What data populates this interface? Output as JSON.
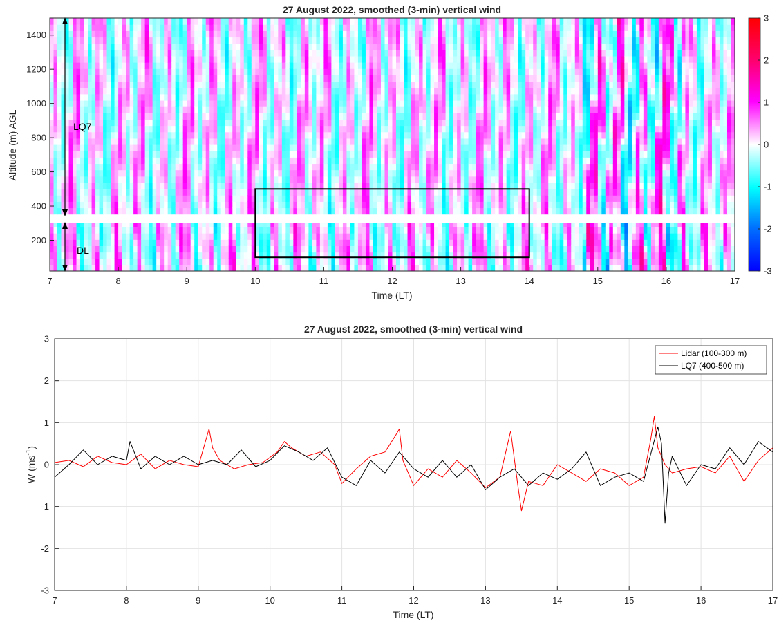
{
  "chart_data": [
    {
      "type": "heatmap",
      "title": "27 August 2022, smoothed (3-min) vertical wind",
      "xlabel": "Time (LT)",
      "ylabel": "Altitude (m) AGL",
      "xlim": [
        7,
        17
      ],
      "ylim": [
        20,
        1500
      ],
      "xticks": [
        "7",
        "8",
        "9",
        "10",
        "11",
        "12",
        "13",
        "14",
        "15",
        "16",
        "17"
      ],
      "yticks": [
        "200",
        "400",
        "600",
        "800",
        "1000",
        "1200",
        "1400"
      ],
      "colorbar": {
        "range": [
          -3,
          3
        ],
        "ticks": [
          "3",
          "2",
          "1",
          "0",
          "-1",
          "-2",
          "-3"
        ],
        "colors": [
          "#0000ff",
          "#00ffff",
          "#ffffff",
          "#ff00ff",
          "#ff0000"
        ]
      },
      "gap_altitude_m": [
        300,
        350
      ],
      "annotations": [
        {
          "text": "LQ7",
          "altitude_range_m": [
            360,
            1500
          ]
        },
        {
          "text": "DL",
          "altitude_range_m": [
            20,
            300
          ]
        }
      ],
      "highlight_box": {
        "time_range": [
          10,
          14
        ],
        "altitude_range_m": [
          100,
          500
        ]
      }
    },
    {
      "type": "line",
      "title": "27 August 2022, smoothed (3-min) vertical wind",
      "xlabel": "Time (LT)",
      "ylabel": "W (ms-1)",
      "ylabel_base": "W (ms",
      "ylabel_sup": "-1",
      "ylabel_end": ")",
      "xlim": [
        7,
        17
      ],
      "ylim": [
        -3,
        3
      ],
      "xticks": [
        "7",
        "8",
        "9",
        "10",
        "11",
        "12",
        "13",
        "14",
        "15",
        "16",
        "17"
      ],
      "yticks": [
        "3",
        "2",
        "1",
        "0",
        "-1",
        "-2",
        "-3"
      ],
      "grid": true,
      "legend_position": "top-right",
      "series": [
        {
          "name": "Lidar (100-300 m)",
          "color": "#ff0000",
          "x": [
            7.0,
            7.2,
            7.4,
            7.6,
            7.8,
            8.0,
            8.2,
            8.4,
            8.6,
            8.8,
            9.0,
            9.15,
            9.2,
            9.3,
            9.5,
            9.7,
            9.9,
            10.1,
            10.2,
            10.3,
            10.5,
            10.7,
            10.9,
            11.0,
            11.2,
            11.4,
            11.6,
            11.75,
            11.8,
            11.85,
            12.0,
            12.2,
            12.4,
            12.6,
            12.8,
            13.0,
            13.2,
            13.35,
            13.45,
            13.5,
            13.6,
            13.8,
            14.0,
            14.2,
            14.4,
            14.6,
            14.8,
            15.0,
            15.2,
            15.3,
            15.35,
            15.4,
            15.5,
            15.6,
            15.8,
            16.0,
            16.2,
            16.4,
            16.6,
            16.8,
            17.0
          ],
          "y": [
            0.05,
            0.1,
            -0.05,
            0.2,
            0.05,
            0.0,
            0.25,
            -0.1,
            0.1,
            0.0,
            -0.05,
            0.85,
            0.4,
            0.1,
            -0.1,
            0.0,
            0.05,
            0.3,
            0.55,
            0.4,
            0.2,
            0.3,
            0.0,
            -0.45,
            -0.1,
            0.2,
            0.3,
            0.7,
            0.85,
            0.1,
            -0.5,
            -0.1,
            -0.3,
            0.1,
            -0.2,
            -0.55,
            -0.3,
            0.8,
            -0.5,
            -1.1,
            -0.4,
            -0.5,
            0.0,
            -0.2,
            -0.4,
            -0.1,
            -0.2,
            -0.5,
            -0.3,
            0.6,
            1.15,
            0.4,
            0.0,
            -0.2,
            -0.1,
            -0.05,
            -0.2,
            0.2,
            -0.4,
            0.1,
            0.4
          ]
        },
        {
          "name": "LQ7 (400-500 m)",
          "color": "#000000",
          "x": [
            7.0,
            7.2,
            7.4,
            7.6,
            7.8,
            8.0,
            8.05,
            8.2,
            8.4,
            8.6,
            8.8,
            9.0,
            9.2,
            9.4,
            9.6,
            9.8,
            10.0,
            10.2,
            10.4,
            10.6,
            10.8,
            11.0,
            11.2,
            11.4,
            11.6,
            11.8,
            12.0,
            12.2,
            12.4,
            12.6,
            12.8,
            13.0,
            13.2,
            13.4,
            13.6,
            13.8,
            14.0,
            14.2,
            14.4,
            14.6,
            14.8,
            15.0,
            15.2,
            15.4,
            15.45,
            15.5,
            15.55,
            15.6,
            15.8,
            16.0,
            16.2,
            16.4,
            16.6,
            16.8,
            17.0
          ],
          "y": [
            -0.3,
            0.0,
            0.35,
            0.0,
            0.2,
            0.1,
            0.55,
            -0.1,
            0.2,
            0.0,
            0.2,
            0.0,
            0.1,
            0.0,
            0.35,
            -0.05,
            0.1,
            0.45,
            0.3,
            0.1,
            0.4,
            -0.3,
            -0.5,
            0.1,
            -0.2,
            0.3,
            -0.1,
            -0.3,
            0.1,
            -0.3,
            0.0,
            -0.6,
            -0.3,
            -0.1,
            -0.5,
            -0.2,
            -0.35,
            -0.1,
            0.3,
            -0.5,
            -0.3,
            -0.2,
            -0.4,
            0.9,
            0.5,
            -1.4,
            -0.2,
            0.2,
            -0.5,
            0.0,
            -0.1,
            0.4,
            0.0,
            0.55,
            0.3
          ]
        }
      ]
    }
  ]
}
